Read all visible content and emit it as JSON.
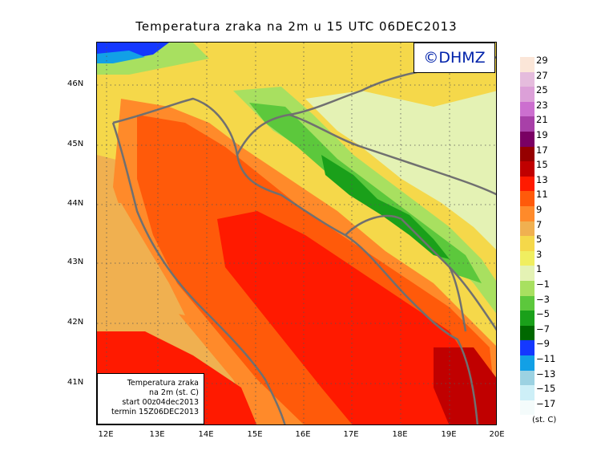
{
  "title": "Temperatura zraka na 2m u 15 UTC 06DEC2013",
  "logo_text": "©DHMZ",
  "info_box": {
    "line1": "Temperatura zraka",
    "line2": "na 2m (st. C)",
    "line3": "start 00z04dec2013",
    "line4": "termin 15Z06DEC2013"
  },
  "lat_labels": [
    "46N",
    "45N",
    "44N",
    "43N",
    "42N",
    "41N"
  ],
  "lon_labels": [
    "12E",
    "13E",
    "14E",
    "15E",
    "16E",
    "17E",
    "18E",
    "19E",
    "20E"
  ],
  "legend": {
    "labels": [
      "29",
      "27",
      "25",
      "23",
      "21",
      "19",
      "17",
      "15",
      "13",
      "11",
      "9",
      "7",
      "5",
      "3",
      "1",
      "−1",
      "−3",
      "−5",
      "−7",
      "−9",
      "−11",
      "−13",
      "−15",
      "−17"
    ],
    "colors": [
      "#fbe6d8",
      "#e5bcdd",
      "#dca0d8",
      "#cc6fcf",
      "#a840a8",
      "#7a0064",
      "#960000",
      "#c00000",
      "#ff1a00",
      "#ff5a0a",
      "#ff8a2a",
      "#f0b050",
      "#f5d84a",
      "#f0ee60",
      "#e4f2b4",
      "#a8e060",
      "#5cc83c",
      "#1aa01a",
      "#006800",
      "#1438ff",
      "#12a0e6",
      "#9cd2e2",
      "#cdeff7",
      "#f4fbfb"
    ],
    "unit": "(st. C)"
  }
}
